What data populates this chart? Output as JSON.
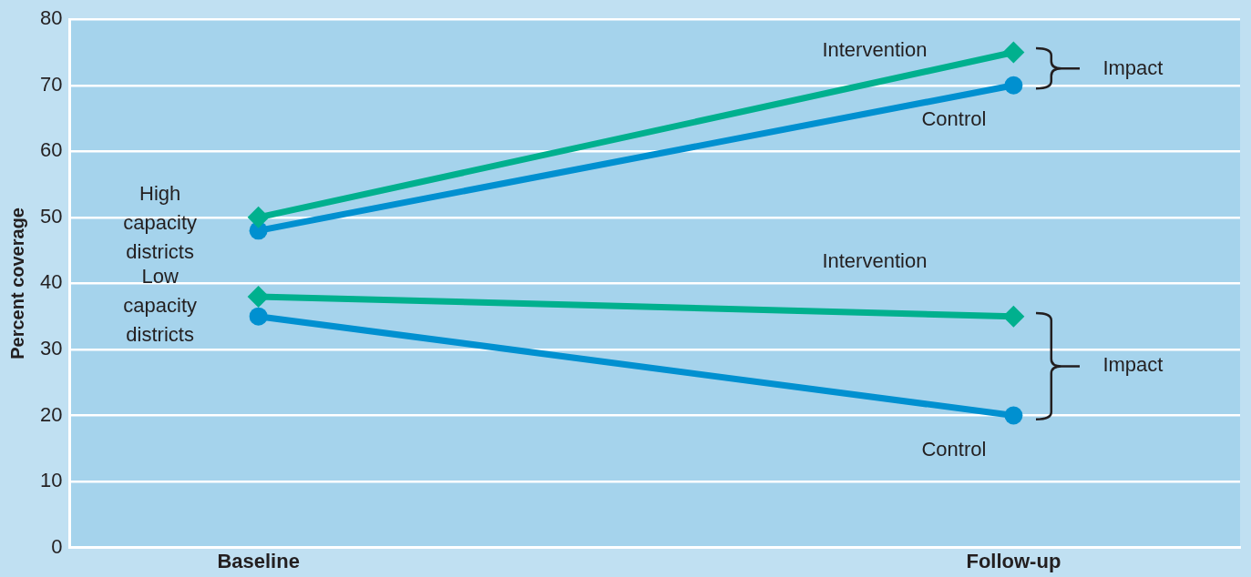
{
  "chart_data": {
    "type": "line",
    "ylabel": "Percent coverage",
    "categories": [
      "Baseline",
      "Follow-up"
    ],
    "series": [
      {
        "name": "Intervention",
        "color": "#00b08e",
        "marker": "diamond",
        "values": [
          50,
          75
        ]
      },
      {
        "name": "Control",
        "color": "#0090d0",
        "marker": "circle",
        "values": [
          48,
          70
        ]
      },
      {
        "name": "Intervention",
        "color": "#00b08e",
        "marker": "diamond",
        "values": [
          38,
          35
        ]
      },
      {
        "name": "Control",
        "color": "#0090d0",
        "marker": "circle",
        "values": [
          35,
          20
        ]
      }
    ],
    "annotations": [
      "High capacity districts",
      "Low capacity districts",
      "Impact",
      "Impact"
    ],
    "ylim": [
      0,
      80
    ],
    "yticks": [
      0,
      10,
      20,
      30,
      40,
      50,
      60,
      70,
      80
    ],
    "grid": "y",
    "legend": false,
    "line_style": "solid"
  }
}
